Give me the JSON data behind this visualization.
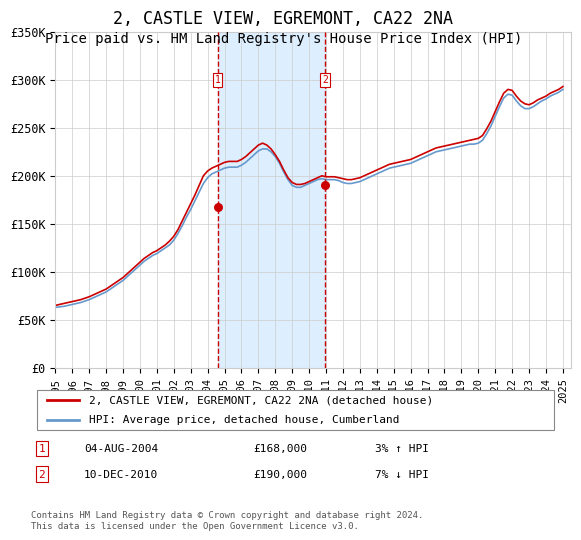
{
  "title": "2, CASTLE VIEW, EGREMONT, CA22 2NA",
  "subtitle": "Price paid vs. HM Land Registry's House Price Index (HPI)",
  "title_fontsize": 12,
  "subtitle_fontsize": 10,
  "ylim": [
    0,
    350000
  ],
  "yticks": [
    0,
    50000,
    100000,
    150000,
    200000,
    250000,
    300000,
    350000
  ],
  "ytick_labels": [
    "£0",
    "£50K",
    "£100K",
    "£150K",
    "£200K",
    "£250K",
    "£300K",
    "£350K"
  ],
  "xlim_start": 1995.0,
  "xlim_end": 2025.5,
  "xticks": [
    1995,
    1996,
    1997,
    1998,
    1999,
    2000,
    2001,
    2002,
    2003,
    2004,
    2005,
    2006,
    2007,
    2008,
    2009,
    2010,
    2011,
    2012,
    2013,
    2014,
    2015,
    2016,
    2017,
    2018,
    2019,
    2020,
    2021,
    2022,
    2023,
    2024,
    2025
  ],
  "purchase1_x": 2004.59,
  "purchase1_y": 168000,
  "purchase1_label": "04-AUG-2004",
  "purchase1_price": "£168,000",
  "purchase1_hpi": "3% ↑ HPI",
  "purchase2_x": 2010.94,
  "purchase2_y": 190000,
  "purchase2_label": "10-DEC-2010",
  "purchase2_price": "£190,000",
  "purchase2_hpi": "7% ↓ HPI",
  "red_color": "#cc0000",
  "blue_color": "#6699cc",
  "shade_color": "#ddeeff",
  "marker_box_color": "#cc0000",
  "grid_color": "#cccccc",
  "background_color": "#ffffff",
  "legend_line1": "2, CASTLE VIEW, EGREMONT, CA22 2NA (detached house)",
  "legend_line2": "HPI: Average price, detached house, Cumberland",
  "footnote": "Contains HM Land Registry data © Crown copyright and database right 2024.\nThis data is licensed under the Open Government Licence v3.0.",
  "hpi_data_x": [
    1995.0,
    1995.25,
    1995.5,
    1995.75,
    1996.0,
    1996.25,
    1996.5,
    1996.75,
    1997.0,
    1997.25,
    1997.5,
    1997.75,
    1998.0,
    1998.25,
    1998.5,
    1998.75,
    1999.0,
    1999.25,
    1999.5,
    1999.75,
    2000.0,
    2000.25,
    2000.5,
    2000.75,
    2001.0,
    2001.25,
    2001.5,
    2001.75,
    2002.0,
    2002.25,
    2002.5,
    2002.75,
    2003.0,
    2003.25,
    2003.5,
    2003.75,
    2004.0,
    2004.25,
    2004.5,
    2004.75,
    2005.0,
    2005.25,
    2005.5,
    2005.75,
    2006.0,
    2006.25,
    2006.5,
    2006.75,
    2007.0,
    2007.25,
    2007.5,
    2007.75,
    2008.0,
    2008.25,
    2008.5,
    2008.75,
    2009.0,
    2009.25,
    2009.5,
    2009.75,
    2010.0,
    2010.25,
    2010.5,
    2010.75,
    2011.0,
    2011.25,
    2011.5,
    2011.75,
    2012.0,
    2012.25,
    2012.5,
    2012.75,
    2013.0,
    2013.25,
    2013.5,
    2013.75,
    2014.0,
    2014.25,
    2014.5,
    2014.75,
    2015.0,
    2015.25,
    2015.5,
    2015.75,
    2016.0,
    2016.25,
    2016.5,
    2016.75,
    2017.0,
    2017.25,
    2017.5,
    2017.75,
    2018.0,
    2018.25,
    2018.5,
    2018.75,
    2019.0,
    2019.25,
    2019.5,
    2019.75,
    2020.0,
    2020.25,
    2020.5,
    2020.75,
    2021.0,
    2021.25,
    2021.5,
    2021.75,
    2022.0,
    2022.25,
    2022.5,
    2022.75,
    2023.0,
    2023.25,
    2023.5,
    2023.75,
    2024.0,
    2024.25,
    2024.5,
    2024.75,
    2025.0
  ],
  "hpi_data_y": [
    63000,
    63500,
    64000,
    65000,
    66000,
    67000,
    68000,
    69500,
    71000,
    73000,
    75000,
    77000,
    79000,
    82000,
    85000,
    88000,
    91000,
    95000,
    99000,
    103000,
    107000,
    111000,
    114000,
    117000,
    119000,
    122000,
    125000,
    128000,
    133000,
    140000,
    148000,
    157000,
    165000,
    174000,
    183000,
    192000,
    198000,
    202000,
    204000,
    206000,
    208000,
    209000,
    209000,
    209000,
    211000,
    214000,
    218000,
    222000,
    226000,
    228000,
    228000,
    225000,
    220000,
    213000,
    204000,
    196000,
    190000,
    188000,
    188000,
    190000,
    192000,
    194000,
    196000,
    197000,
    196000,
    196000,
    196000,
    195000,
    193000,
    192000,
    192000,
    193000,
    194000,
    196000,
    198000,
    200000,
    202000,
    204000,
    206000,
    208000,
    209000,
    210000,
    211000,
    212000,
    213000,
    215000,
    217000,
    219000,
    221000,
    223000,
    225000,
    226000,
    227000,
    228000,
    229000,
    230000,
    231000,
    232000,
    233000,
    233000,
    234000,
    237000,
    244000,
    252000,
    262000,
    272000,
    281000,
    285000,
    284000,
    278000,
    273000,
    270000,
    270000,
    272000,
    275000,
    278000,
    280000,
    283000,
    285000,
    287000,
    290000
  ],
  "red_data_x": [
    1995.0,
    1995.25,
    1995.5,
    1995.75,
    1996.0,
    1996.25,
    1996.5,
    1996.75,
    1997.0,
    1997.25,
    1997.5,
    1997.75,
    1998.0,
    1998.25,
    1998.5,
    1998.75,
    1999.0,
    1999.25,
    1999.5,
    1999.75,
    2000.0,
    2000.25,
    2000.5,
    2000.75,
    2001.0,
    2001.25,
    2001.5,
    2001.75,
    2002.0,
    2002.25,
    2002.5,
    2002.75,
    2003.0,
    2003.25,
    2003.5,
    2003.75,
    2004.0,
    2004.25,
    2004.5,
    2004.75,
    2005.0,
    2005.25,
    2005.5,
    2005.75,
    2006.0,
    2006.25,
    2006.5,
    2006.75,
    2007.0,
    2007.25,
    2007.5,
    2007.75,
    2008.0,
    2008.25,
    2008.5,
    2008.75,
    2009.0,
    2009.25,
    2009.5,
    2009.75,
    2010.0,
    2010.25,
    2010.5,
    2010.75,
    2011.0,
    2011.25,
    2011.5,
    2011.75,
    2012.0,
    2012.25,
    2012.5,
    2012.75,
    2013.0,
    2013.25,
    2013.5,
    2013.75,
    2014.0,
    2014.25,
    2014.5,
    2014.75,
    2015.0,
    2015.25,
    2015.5,
    2015.75,
    2016.0,
    2016.25,
    2016.5,
    2016.75,
    2017.0,
    2017.25,
    2017.5,
    2017.75,
    2018.0,
    2018.25,
    2018.5,
    2018.75,
    2019.0,
    2019.25,
    2019.5,
    2019.75,
    2020.0,
    2020.25,
    2020.5,
    2020.75,
    2021.0,
    2021.25,
    2021.5,
    2021.75,
    2022.0,
    2022.25,
    2022.5,
    2022.75,
    2023.0,
    2023.25,
    2023.5,
    2023.75,
    2024.0,
    2024.25,
    2024.5,
    2024.75,
    2025.0
  ],
  "red_data_y": [
    65000,
    66000,
    67000,
    68000,
    69000,
    70000,
    71000,
    72500,
    74000,
    76000,
    78000,
    80000,
    82000,
    85000,
    88000,
    91000,
    94000,
    98000,
    102000,
    106000,
    110000,
    114000,
    117000,
    120000,
    122000,
    125000,
    128000,
    132000,
    137000,
    144000,
    153000,
    162000,
    171000,
    180000,
    190000,
    200000,
    205000,
    208000,
    210000,
    212000,
    214000,
    215000,
    215000,
    215000,
    217000,
    220000,
    224000,
    228000,
    232000,
    234000,
    232000,
    228000,
    222000,
    215000,
    206000,
    198000,
    193000,
    191000,
    191000,
    192000,
    194000,
    196000,
    198000,
    200000,
    199000,
    199000,
    199000,
    198000,
    197000,
    196000,
    196000,
    197000,
    198000,
    200000,
    202000,
    204000,
    206000,
    208000,
    210000,
    212000,
    213000,
    214000,
    215000,
    216000,
    217000,
    219000,
    221000,
    223000,
    225000,
    227000,
    229000,
    230000,
    231000,
    232000,
    233000,
    234000,
    235000,
    236000,
    237000,
    238000,
    239000,
    242000,
    249000,
    257000,
    267000,
    277000,
    286000,
    290000,
    289000,
    283000,
    278000,
    275000,
    274000,
    276000,
    279000,
    281000,
    283000,
    286000,
    288000,
    290000,
    293000
  ]
}
